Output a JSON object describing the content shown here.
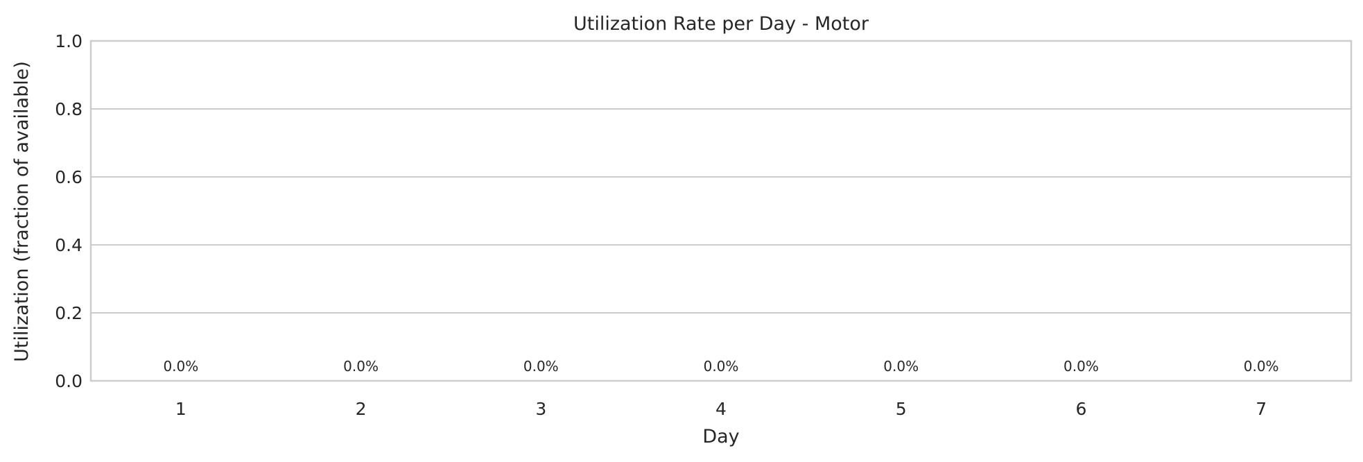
{
  "chart_data": {
    "type": "bar",
    "title": "Utilization Rate per Day - Motor",
    "xlabel": "Day",
    "ylabel": "Utilization (fraction of available)",
    "categories": [
      "1",
      "2",
      "3",
      "4",
      "5",
      "6",
      "7"
    ],
    "values": [
      0.0,
      0.0,
      0.0,
      0.0,
      0.0,
      0.0,
      0.0
    ],
    "data_labels": [
      "0.0%",
      "0.0%",
      "0.0%",
      "0.0%",
      "0.0%",
      "0.0%",
      "0.0%"
    ],
    "ylim": [
      0,
      1.0
    ],
    "yticks": [
      "0.0",
      "0.2",
      "0.4",
      "0.6",
      "0.8",
      "1.0"
    ],
    "grid": "horizontal",
    "bar_color": "#4c72b0"
  }
}
